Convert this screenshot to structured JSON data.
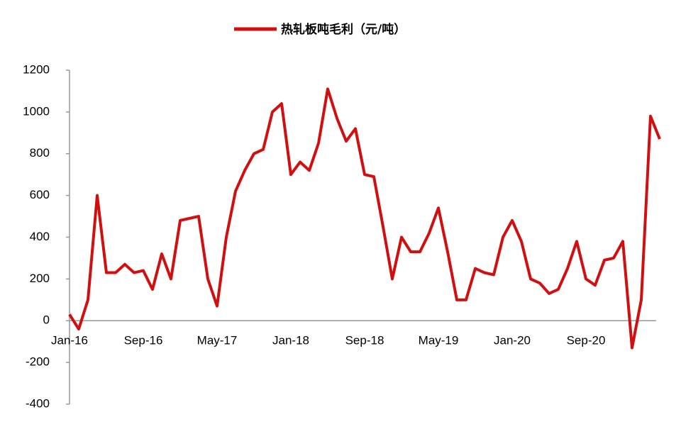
{
  "chart_data": {
    "type": "line",
    "categories": [
      "Jan-16",
      null,
      null,
      null,
      null,
      null,
      null,
      null,
      "Sep-16",
      null,
      null,
      null,
      null,
      null,
      null,
      null,
      "May-17",
      null,
      null,
      null,
      null,
      null,
      null,
      null,
      "Jan-18",
      null,
      null,
      null,
      null,
      null,
      null,
      null,
      "Sep-18",
      null,
      null,
      null,
      null,
      null,
      null,
      null,
      "May-19",
      null,
      null,
      null,
      null,
      null,
      null,
      null,
      "Jan-20",
      null,
      null,
      null,
      null,
      null,
      null,
      null,
      "Sep-20",
      null,
      null,
      null,
      null,
      null,
      null,
      null,
      null
    ],
    "series": [
      {
        "name": "热轧板吨毛利（元/吨）",
        "color": "#d01010",
        "values": [
          30,
          -40,
          100,
          600,
          230,
          230,
          270,
          230,
          240,
          150,
          320,
          200,
          480,
          490,
          500,
          200,
          70,
          400,
          620,
          720,
          800,
          820,
          1000,
          1040,
          700,
          760,
          720,
          850,
          1110,
          970,
          860,
          920,
          700,
          690,
          450,
          200,
          400,
          330,
          330,
          420,
          540,
          330,
          100,
          100,
          250,
          230,
          220,
          400,
          480,
          380,
          200,
          180,
          130,
          150,
          250,
          380,
          200,
          170,
          290,
          300,
          380,
          -130,
          100,
          980,
          870
        ]
      }
    ],
    "ylim": [
      -400,
      1200
    ],
    "yticks": [
      -400,
      -200,
      0,
      200,
      400,
      600,
      800,
      1000,
      1200
    ],
    "legend": "top",
    "grid": false
  }
}
